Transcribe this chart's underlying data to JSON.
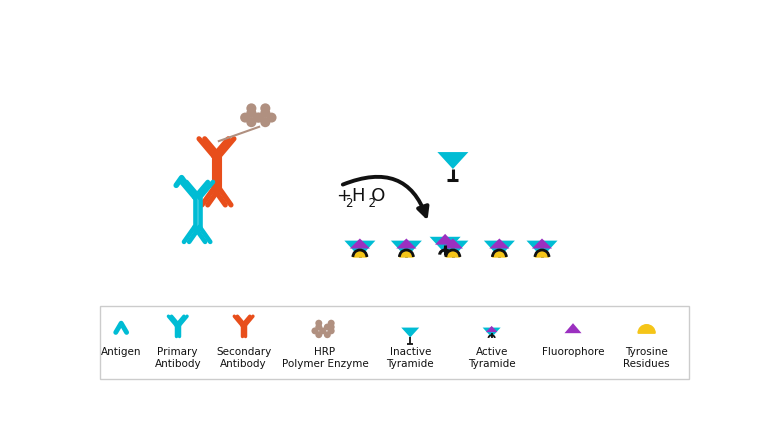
{
  "bg_color": "#ffffff",
  "legend_border_color": "#cccccc",
  "cyan_color": "#00bcd4",
  "orange_color": "#e84e1b",
  "magenta_color": "#9b30c0",
  "hrp_color": "#b09080",
  "yellow_color": "#f5c518",
  "black_color": "#111111",
  "legend_labels": [
    "Antigen",
    "Primary\nAntibody",
    "Secondary\nAntibody",
    "HRP\nPolymer Enzyme",
    "Inactive\nTyramide",
    "Active\nTyramide",
    "Fluorophore",
    "Tyrosine\nResidues"
  ]
}
